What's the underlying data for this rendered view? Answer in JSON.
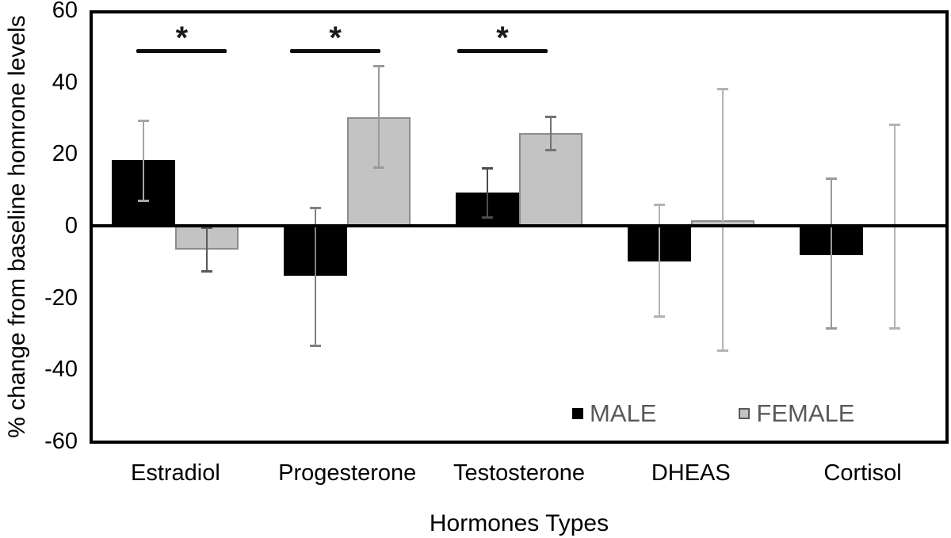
{
  "chart_data": {
    "type": "bar",
    "title": "",
    "xlabel": "Hormones Types",
    "ylabel": "% change from baseline homrone levels",
    "categories": [
      "Estradiol",
      "Progesterone",
      "Testosterone",
      "DHEAS",
      "Cortisol"
    ],
    "series": [
      {
        "name": "MALE",
        "color": "#000000",
        "border_color": "#000000",
        "values": [
          18.2,
          -13.9,
          9.3,
          -9.9,
          -8.2
        ],
        "error_low": [
          6.8,
          -33.5,
          2.2,
          -25.4,
          -28.7
        ],
        "error_high": [
          29.3,
          5.1,
          16.1,
          6.0,
          13.2
        ],
        "error_colors": [
          "#a6a6a6",
          "#808080",
          "#4d4d4d",
          "#b3b3b3",
          "#999999"
        ]
      },
      {
        "name": "FEMALE",
        "color": "#c3c3c3",
        "border_color": "#8c8c8c",
        "values": [
          -6.6,
          30.2,
          25.8,
          1.5,
          0
        ],
        "error_low": [
          -12.8,
          16.1,
          20.9,
          -34.9,
          -28.7
        ],
        "error_high": [
          -0.4,
          44.6,
          30.4,
          38.2,
          28.2
        ],
        "error_colors": [
          "#595959",
          "#999999",
          "#737373",
          "#b3b3b3",
          "#b3b3b3"
        ]
      }
    ],
    "ylim": [
      -60,
      60
    ],
    "yticks": [
      60,
      40,
      20,
      0,
      -20,
      -40,
      -60
    ],
    "grid": false,
    "significance": [
      {
        "category": "Estradiol",
        "label": "*",
        "line_value": 48.8,
        "x_offset": 8
      },
      {
        "category": "Progesterone",
        "label": "*",
        "line_value": 48.8,
        "x_offset": -15
      },
      {
        "category": "Testosterone",
        "label": "*",
        "line_value": 48.8,
        "x_offset": -21
      }
    ],
    "legend": {
      "position": "inside-bottom-right",
      "items": [
        "MALE",
        "FEMALE"
      ]
    }
  }
}
